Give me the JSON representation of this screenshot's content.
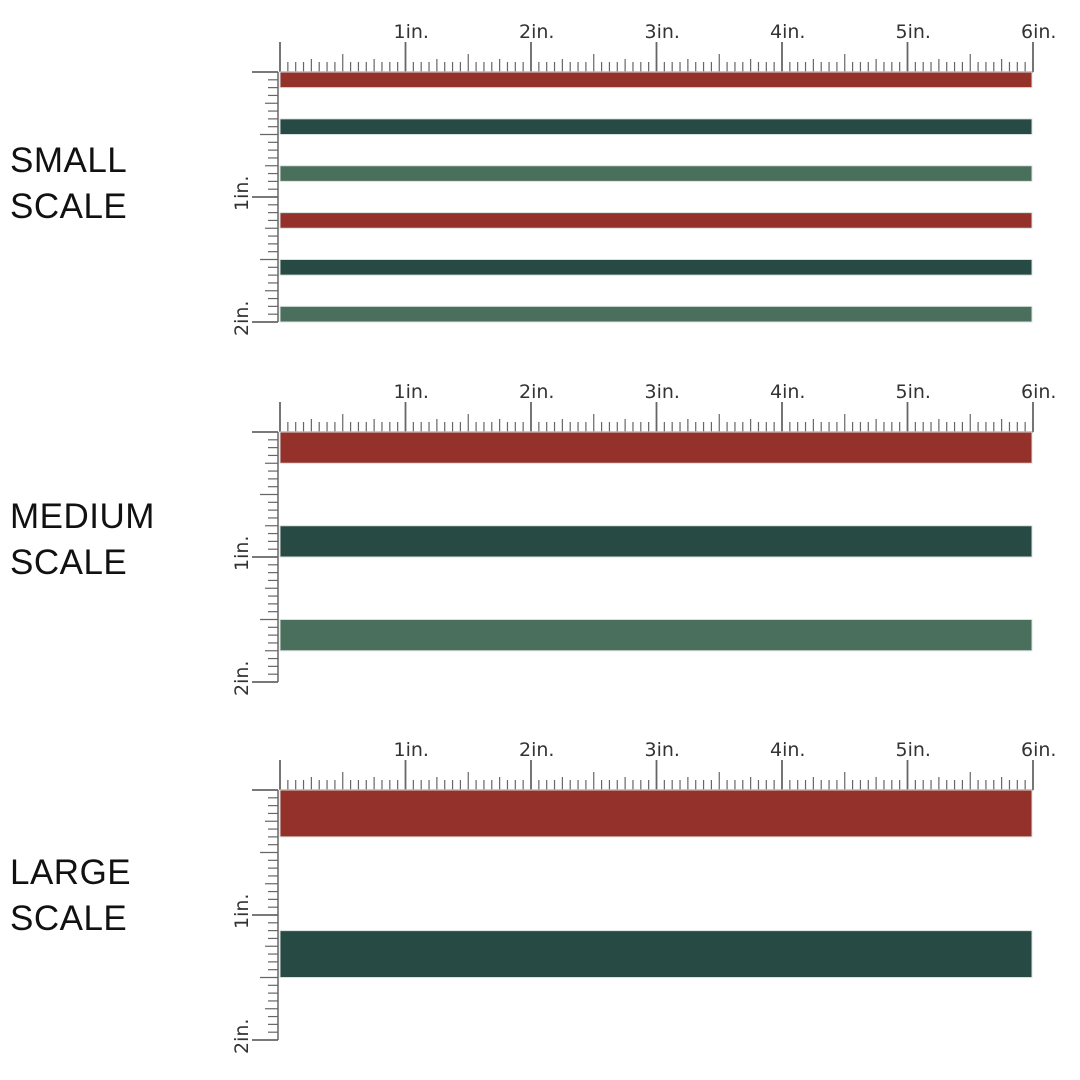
{
  "units": {
    "horizontal_labels": [
      "1in.",
      "2in.",
      "3in.",
      "4in.",
      "5in.",
      "6in."
    ],
    "vertical_labels": [
      "1in.",
      "2in."
    ]
  },
  "colors": {
    "red": "#94312b",
    "dark_green": "#274a44",
    "sage_green": "#4a6f5c",
    "ruler": "#666666"
  },
  "panels": [
    {
      "label_line1": "SMALL",
      "label_line2": "SCALE",
      "stripe_width_in": 0.125,
      "stripes": [
        {
          "start_in": 0.0,
          "color": "red"
        },
        {
          "start_in": 0.375,
          "color": "dark_green"
        },
        {
          "start_in": 0.75,
          "color": "sage_green"
        },
        {
          "start_in": 1.125,
          "color": "red"
        },
        {
          "start_in": 1.5,
          "color": "dark_green"
        },
        {
          "start_in": 1.875,
          "color": "sage_green"
        }
      ]
    },
    {
      "label_line1": "MEDIUM",
      "label_line2": "SCALE",
      "stripe_width_in": 0.25,
      "stripes": [
        {
          "start_in": 0.0,
          "color": "red"
        },
        {
          "start_in": 0.75,
          "color": "dark_green"
        },
        {
          "start_in": 1.5,
          "color": "sage_green"
        }
      ]
    },
    {
      "label_line1": "LARGE",
      "label_line2": "SCALE",
      "stripe_width_in": 0.375,
      "stripes": [
        {
          "start_in": 0.0,
          "color": "red"
        },
        {
          "start_in": 1.125,
          "color": "dark_green"
        }
      ]
    }
  ]
}
